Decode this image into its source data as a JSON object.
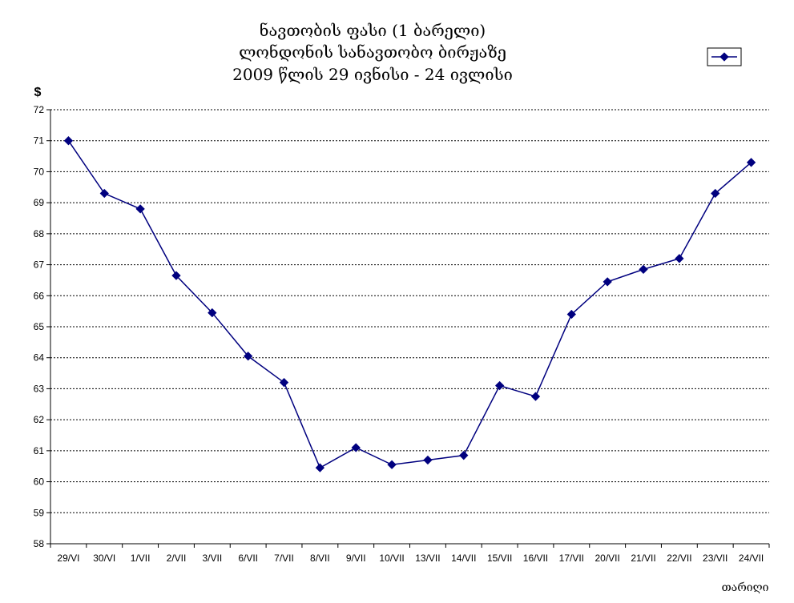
{
  "chart_data": {
    "type": "line",
    "title_lines": [
      "ნავთობის ფასი (1 ბარელი)",
      "ლონდონის სანავთობო ბირჟაზე",
      "2009 წლის 29 ივნისი - 24 ივლისი"
    ],
    "ylabel": "$",
    "xlabel": "თარიღი",
    "categories": [
      "29/VI",
      "30/VI",
      "1/VII",
      "2/VII",
      "3/VII",
      "6/VII",
      "7/VII",
      "8/VII",
      "9/VII",
      "10/VII",
      "13/VII",
      "14/VII",
      "15/VII",
      "16/VII",
      "17/VII",
      "20/VII",
      "21/VII",
      "22/VII",
      "23/VII",
      "24/VII"
    ],
    "series": [
      {
        "values": [
          71.0,
          69.3,
          68.8,
          66.65,
          65.45,
          64.05,
          63.2,
          60.45,
          61.1,
          60.55,
          60.7,
          60.85,
          63.1,
          62.75,
          65.4,
          66.45,
          66.85,
          67.2,
          69.3,
          70.3
        ]
      }
    ],
    "ylim": [
      58,
      72
    ],
    "yticks": [
      58,
      59,
      60,
      61,
      62,
      63,
      64,
      65,
      66,
      67,
      68,
      69,
      70,
      71,
      72
    ],
    "grid": true,
    "legend_position": "top-right",
    "line_color": "#00007f"
  }
}
